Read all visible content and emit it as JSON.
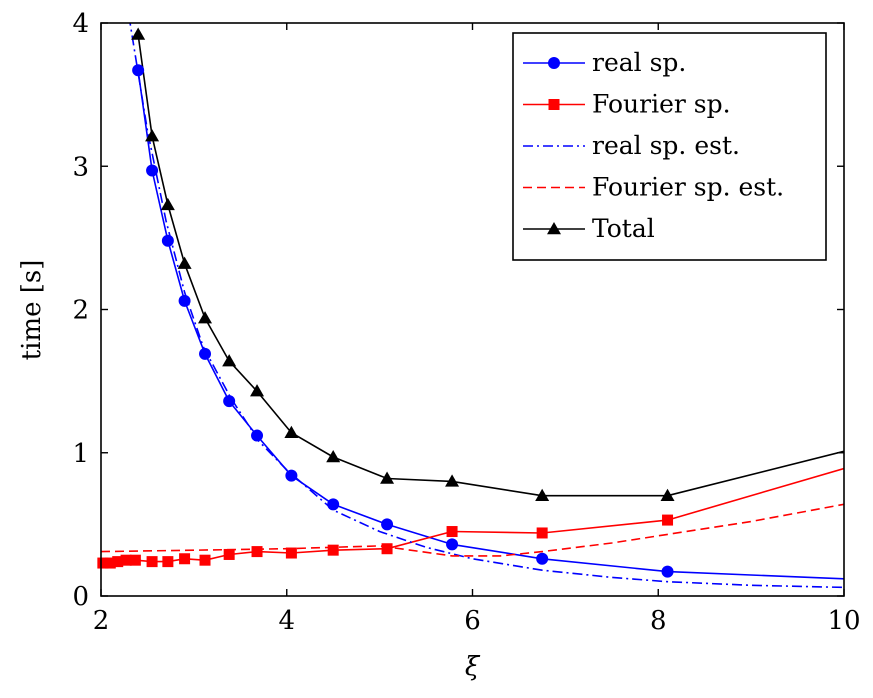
{
  "chart_data": {
    "type": "line",
    "xlabel": "ξ",
    "ylabel": "time [s]",
    "xlim": [
      2,
      10
    ],
    "ylim": [
      0,
      4
    ],
    "xticks": [
      "2",
      "4",
      "6",
      "8",
      "10"
    ],
    "yticks": [
      "0",
      "1",
      "2",
      "3",
      "4"
    ],
    "grid": false,
    "legend_position": "top-right",
    "series": [
      {
        "name": "real sp.",
        "color": "#0000ff",
        "line": "solid",
        "marker": "circle",
        "x": [
          2.4,
          2.55,
          2.72,
          2.9,
          3.12,
          3.38,
          3.68,
          4.05,
          4.5,
          5.08,
          5.78,
          6.75,
          8.1,
          10
        ],
        "y": [
          3.67,
          2.97,
          2.48,
          2.06,
          1.69,
          1.36,
          1.12,
          0.84,
          0.64,
          0.5,
          0.36,
          0.26,
          0.17,
          0.12
        ],
        "markers": [
          true,
          true,
          true,
          true,
          true,
          true,
          true,
          true,
          true,
          true,
          true,
          true,
          true,
          false
        ]
      },
      {
        "name": "Fourier sp.",
        "color": "#ff0000",
        "line": "solid",
        "marker": "square",
        "x": [
          2.02,
          2.1,
          2.18,
          2.27,
          2.37,
          2.55,
          2.72,
          2.9,
          3.12,
          3.38,
          3.68,
          4.05,
          4.5,
          5.08,
          5.78,
          6.75,
          8.1,
          10
        ],
        "y": [
          0.23,
          0.23,
          0.24,
          0.25,
          0.25,
          0.24,
          0.24,
          0.26,
          0.25,
          0.29,
          0.31,
          0.3,
          0.32,
          0.33,
          0.45,
          0.44,
          0.53,
          0.89
        ],
        "markers": [
          true,
          true,
          true,
          true,
          true,
          true,
          true,
          true,
          true,
          true,
          true,
          true,
          true,
          true,
          true,
          true,
          true,
          false
        ]
      },
      {
        "name": "real sp. est.",
        "color": "#0000ff",
        "line": "dashdot",
        "marker": "none",
        "x": [
          2.3,
          2.5,
          2.7,
          2.9,
          3.1,
          3.4,
          3.7,
          4.0,
          4.5,
          5.0,
          5.5,
          6.0,
          6.75,
          7.5,
          8.1,
          9.0,
          10
        ],
        "y": [
          4.05,
          3.25,
          2.62,
          2.12,
          1.74,
          1.38,
          1.08,
          0.88,
          0.6,
          0.45,
          0.34,
          0.26,
          0.18,
          0.13,
          0.1,
          0.075,
          0.06
        ]
      },
      {
        "name": "Fourier sp. est.",
        "color": "#ff0000",
        "line": "dashed",
        "marker": "none",
        "x": [
          2,
          3,
          4,
          5,
          5.78,
          6.3,
          6.75,
          7.5,
          8.1,
          9,
          10
        ],
        "y": [
          0.31,
          0.32,
          0.33,
          0.35,
          0.28,
          0.28,
          0.31,
          0.37,
          0.43,
          0.52,
          0.64
        ]
      },
      {
        "name": "Total",
        "color": "#000000",
        "line": "solid",
        "marker": "triangle",
        "x": [
          2.4,
          2.55,
          2.72,
          2.9,
          3.12,
          3.38,
          3.68,
          4.05,
          4.5,
          5.08,
          5.78,
          6.75,
          8.1,
          10
        ],
        "y": [
          3.92,
          3.21,
          2.73,
          2.32,
          1.94,
          1.64,
          1.43,
          1.14,
          0.97,
          0.82,
          0.8,
          0.7,
          0.7,
          1.01
        ],
        "markers": [
          true,
          true,
          true,
          true,
          true,
          true,
          true,
          true,
          true,
          true,
          true,
          true,
          true,
          false
        ]
      }
    ]
  }
}
